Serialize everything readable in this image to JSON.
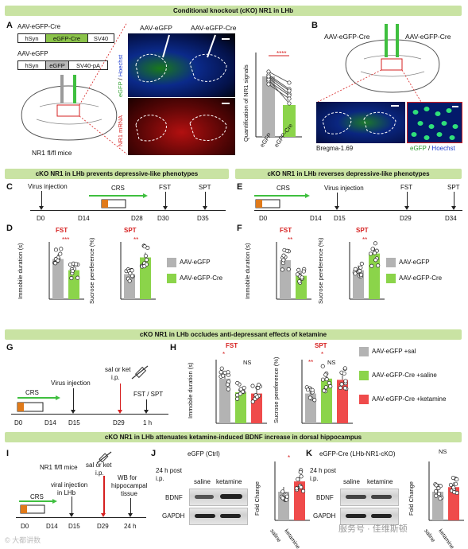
{
  "sections": {
    "top": "Conditional knockout (cKO) NR1 in LHb",
    "cd": "cKO NR1 in LHb prevents depressive-like phenotypes",
    "ef": "cKO NR1 in LHb reverses depressive-like phenotypes",
    "gh": "cKO NR1 in LHb occludes anti-depressant effects of ketamine",
    "ijk": "cKO NR1 in LHb attenuates ketamine-induced BDNF increase in dorsal hippocampus"
  },
  "panel_letters": [
    "A",
    "B",
    "C",
    "D",
    "E",
    "F",
    "G",
    "H",
    "I",
    "J",
    "K"
  ],
  "panelA": {
    "cre_label": "AAV-eGFP-Cre",
    "gfp_label": "AAV-eGFP",
    "cre_construct": [
      "hSyn",
      "eGFP-Cre",
      "SV40"
    ],
    "gfp_construct": [
      "hSyn",
      "eGFP",
      "SV40-pA"
    ],
    "mouse_label": "NR1 fl/fl mice",
    "micro_left_title": "AAV-eGFP",
    "micro_right_title": "AAV-eGFP-Cre",
    "stain_egfp": "eGFP",
    "stain_sep": " / ",
    "stain_hoechst": "Hoechst",
    "stain_nr1": "NR1 mRNA",
    "quant_ylabel": "Quantification of NR1 signals",
    "quant_sig": "****",
    "quant_x": [
      "eGFP",
      "eGFP-Cre"
    ]
  },
  "panelB": {
    "left_label": "AAV-eGFP-Cre",
    "right_label": "AAV-eGFP-Cre",
    "bregma": "Bregma-1.69",
    "stain_egfp": "eGFP",
    "stain_sep": " / ",
    "stain_hoechst": "Hoechst"
  },
  "panelC": {
    "events": [
      "Virus injection",
      "CRS",
      "FST",
      "SPT"
    ],
    "days": [
      "D0",
      "D14",
      "D28",
      "D30",
      "D35"
    ]
  },
  "panelE": {
    "events": [
      "CRS",
      "Virus injection",
      "FST",
      "SPT"
    ],
    "days": [
      "D0",
      "D14",
      "D15",
      "D29",
      "D34"
    ]
  },
  "panelD": {
    "fst_title": "FST",
    "fst_ylabel": "Immobile duration (s)",
    "fst_sig": "***",
    "spt_title": "SPT",
    "spt_ylabel": "Sucrose pereference (%)",
    "spt_sig": "**",
    "legend": [
      "AAV-eGFP",
      "AAV-eGFP-Cre"
    ]
  },
  "panelF": {
    "fst_title": "FST",
    "fst_ylabel": "Immobile duration (s)",
    "fst_sig": "**",
    "spt_title": "SPT",
    "spt_ylabel": "Sucrose pereference (%)",
    "spt_sig": "**",
    "legend": [
      "AAV-eGFP",
      "AAV-eGFP-Cre"
    ]
  },
  "panelG": {
    "crs": "CRS",
    "virus": "Virus injection",
    "drug": "sal or ket",
    "drug_route": "i.p.",
    "tests": "FST / SPT",
    "days": [
      "D0",
      "D14",
      "D15",
      "D29",
      "1 h"
    ]
  },
  "panelH": {
    "fst_title": "FST",
    "fst_ylabel": "Immobile duration (s)",
    "fst_sig": "*",
    "fst_ns": "NS",
    "spt_title": "SPT",
    "spt_ylabel": "Sucrose pereference (%)",
    "spt_sig_top": "*",
    "spt_sig": "**",
    "spt_ns": "NS",
    "legend": [
      "AAV-eGFP +sal",
      "AAV-eGFP-Cre +saline",
      "AAV-eGFP-Cre +ketamine"
    ]
  },
  "panelI": {
    "mouse": "NR1 fl/fl mice",
    "crs": "CRS",
    "virus": "viral injection",
    "virus_site": "in LHb",
    "drug": "sal or ket",
    "drug_route": "i.p.",
    "wb": "WB for",
    "wb_tissue": "hippocampal",
    "wb_tissue2": "tissue",
    "days": [
      "D0",
      "D14",
      "D15",
      "D29",
      "24 h"
    ]
  },
  "panelJ": {
    "title": "eGFP (Ctrl)",
    "time": "24 h post",
    "time2": "i.p.",
    "cols": [
      "saline",
      "ketamine"
    ],
    "rows": [
      "BDNF",
      "GAPDH"
    ],
    "ylabel": "Fold Change",
    "sig": "*",
    "x": [
      "saline",
      "ketamine"
    ]
  },
  "panelK": {
    "title": "eGFP-Cre (LHb-NR1-cKO)",
    "time": "24 h post",
    "time2": "i.p.",
    "cols": [
      "saline",
      "ketamine"
    ],
    "rows": [
      "BDNF",
      "GAPDH"
    ],
    "ylabel": "Fold Change",
    "sig": "NS",
    "x": [
      "saline",
      "ketamine"
    ]
  },
  "watermark_left": "© 大都讲数",
  "watermark_right": "服务号 · 佳维斯顿",
  "colors": {
    "control": "#b3b3b3",
    "cre": "#8bd44a",
    "ketamine": "#ef4b4b",
    "banner": "#c9e3a3",
    "sig": "#d62020"
  }
}
